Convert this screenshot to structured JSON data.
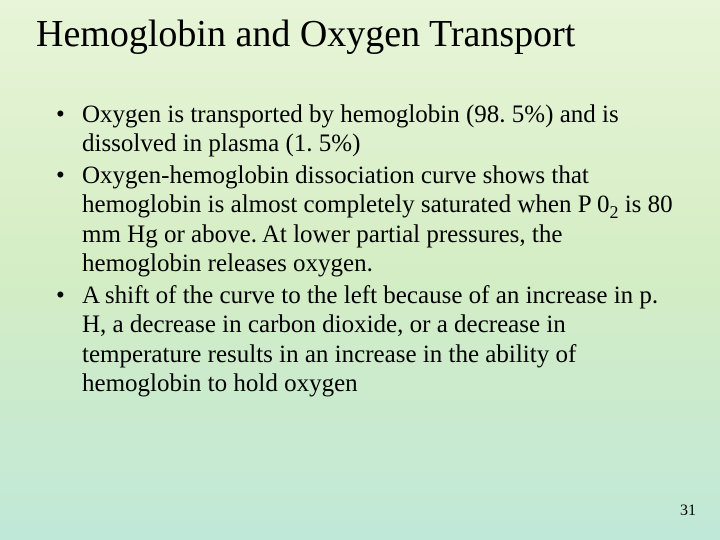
{
  "title": "Hemoglobin and Oxygen Transport",
  "bullets": {
    "b1": "Oxygen is transported by hemoglobin (98. 5%) and is dissolved in plasma (1. 5%)",
    "b2_pre": "Oxygen-hemoglobin dissociation curve shows that hemoglobin is almost completely saturated when P 0",
    "b2_sub": "2",
    "b2_post": " is 80 mm Hg or above.  At lower partial pressures, the hemoglobin releases oxygen.",
    "b3": "A shift of the curve to the left because of an increase in p. H, a decrease in carbon dioxide, or a decrease in temperature results in an increase in the ability of hemoglobin to hold oxygen"
  },
  "page_number": "31",
  "style": {
    "background_top": "#e8f5d8",
    "background_mid": "#d4edc4",
    "background_bottom": "#c0e8d8",
    "text_color": "#000000",
    "title_fontsize": 38,
    "body_fontsize": 25,
    "font_family": "Times New Roman"
  }
}
